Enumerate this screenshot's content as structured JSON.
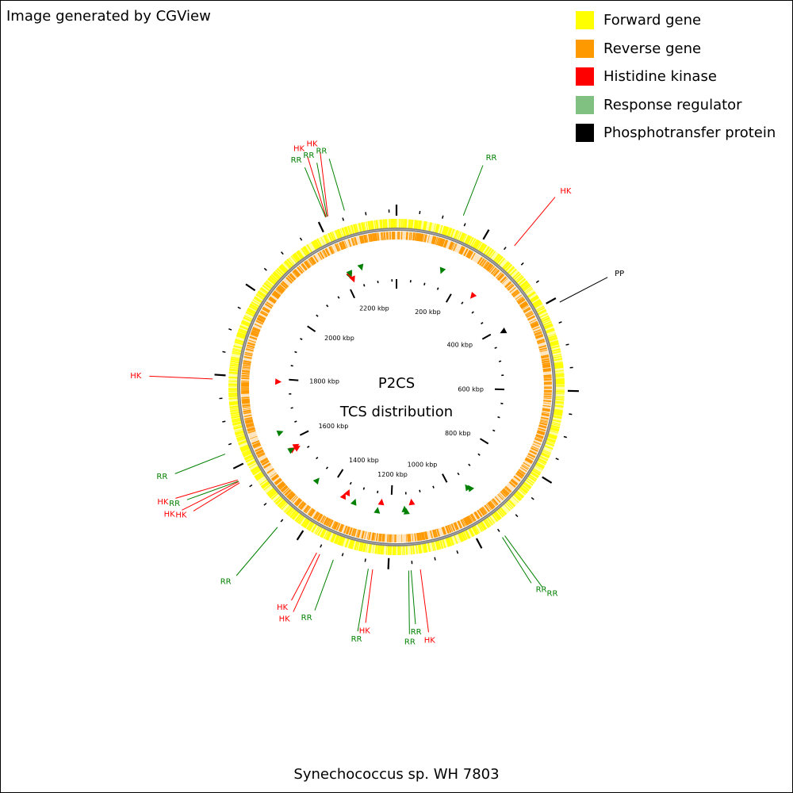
{
  "header": {
    "credit": "Image generated by CGView"
  },
  "legend": [
    {
      "label": "Forward gene",
      "color": "#ffff00"
    },
    {
      "label": "Reverse gene",
      "color": "#ff9900"
    },
    {
      "label": "Histidine kinase",
      "color": "#ff0000"
    },
    {
      "label": "Response regulator",
      "color": "#80c080"
    },
    {
      "label": "Phosphotransfer protein",
      "color": "#000000"
    }
  ],
  "map": {
    "center_title": "P2CS",
    "center_subtitle": "TCS distribution",
    "organism": "Synechococcus sp. WH 7803",
    "genome_length_kbp": 2366,
    "ruler_labels": [
      {
        "label": "200 kbp",
        "kbp": 200
      },
      {
        "label": "400 kbp",
        "kbp": 400
      },
      {
        "label": "600 kbp",
        "kbp": 600
      },
      {
        "label": "800 kbp",
        "kbp": 800
      },
      {
        "label": "1000 kbp",
        "kbp": 1000
      },
      {
        "label": "1200 kbp",
        "kbp": 1200
      },
      {
        "label": "1400 kbp",
        "kbp": 1400
      },
      {
        "label": "1600 kbp",
        "kbp": 1600
      },
      {
        "label": "1800 kbp",
        "kbp": 1800
      },
      {
        "label": "2000 kbp",
        "kbp": 2000
      },
      {
        "label": "2200 kbp",
        "kbp": 2200
      }
    ],
    "features": [
      {
        "label": "RR",
        "type": "RR",
        "kbp": 140
      },
      {
        "label": "HK",
        "type": "HK",
        "kbp": 262
      },
      {
        "label": "PP",
        "type": "PP",
        "kbp": 411
      },
      {
        "label": "RR",
        "type": "RR",
        "kbp": 946
      },
      {
        "label": "RR",
        "type": "RR",
        "kbp": 952
      },
      {
        "label": "HK",
        "type": "HK",
        "kbp": 1134
      },
      {
        "label": "RR",
        "type": "RR",
        "kbp": 1153
      },
      {
        "label": "RR",
        "type": "RR",
        "kbp": 1158
      },
      {
        "label": "HK",
        "type": "HK",
        "kbp": 1232
      },
      {
        "label": "RR",
        "type": "RR",
        "kbp": 1241
      },
      {
        "label": "RR",
        "type": "RR",
        "kbp": 1315
      },
      {
        "label": "HK",
        "type": "HK",
        "kbp": 1345
      },
      {
        "label": "HK",
        "type": "HK",
        "kbp": 1352
      },
      {
        "label": "RR",
        "type": "RR",
        "kbp": 1448
      },
      {
        "label": "HK",
        "type": "HK",
        "kbp": 1568
      },
      {
        "label": "HK",
        "type": "HK",
        "kbp": 1571
      },
      {
        "label": "RR",
        "type": "RR",
        "kbp": 1572
      },
      {
        "label": "HK",
        "type": "HK",
        "kbp": 1575
      },
      {
        "label": "RR",
        "type": "RR",
        "kbp": 1634
      },
      {
        "label": "HK",
        "type": "HK",
        "kbp": 1791
      },
      {
        "label": "RR",
        "type": "RR",
        "kbp": 2217
      },
      {
        "label": "HK",
        "type": "HK",
        "kbp": 2218
      },
      {
        "label": "RR",
        "type": "RR",
        "kbp": 2220
      },
      {
        "label": "HK",
        "type": "HK",
        "kbp": 2222
      },
      {
        "label": "RR",
        "type": "RR",
        "kbp": 2258
      }
    ],
    "colors": {
      "forward": "#ffff00",
      "reverse": "#ff9900",
      "hk": "#ff0000",
      "rr": "#008000",
      "pp": "#000000",
      "backbone": "#808080"
    }
  }
}
